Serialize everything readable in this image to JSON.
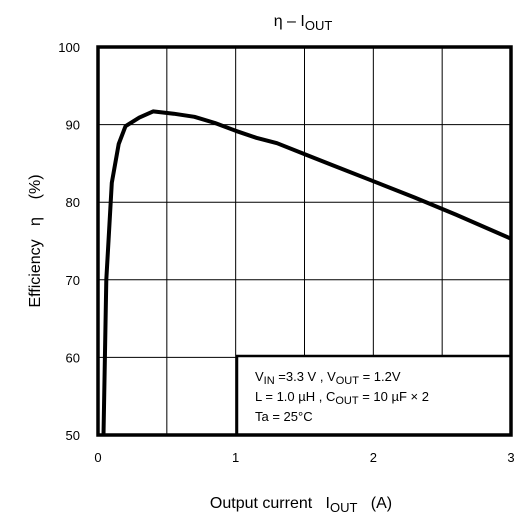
{
  "chart_data": {
    "type": "line",
    "title": {
      "main": "η – I",
      "sub": "OUT"
    },
    "xlabel": {
      "pre": "Output current   I",
      "sub": "OUT",
      "post": "   (A)"
    },
    "ylabel": "Efficiency   η    (%)",
    "xlim": [
      0,
      3
    ],
    "ylim": [
      50,
      100
    ],
    "x_ticks": [
      "0",
      "1",
      "2",
      "3"
    ],
    "y_ticks": [
      "50",
      "60",
      "70",
      "80",
      "90",
      "100"
    ],
    "grid": true,
    "series": [
      {
        "x": [
          0.04,
          0.06,
          0.1,
          0.15,
          0.2,
          0.3,
          0.4,
          0.55,
          0.7,
          0.85,
          1.0,
          1.15,
          1.3,
          1.5,
          1.7,
          2.0,
          2.3,
          2.6,
          3.0
        ],
        "y": [
          50.0,
          70.0,
          82.5,
          87.5,
          89.8,
          90.9,
          91.7,
          91.4,
          91.0,
          90.2,
          89.2,
          88.3,
          87.6,
          86.2,
          84.8,
          82.7,
          80.6,
          78.4,
          75.3
        ]
      }
    ],
    "annotation": {
      "line1": [
        {
          "t": "V",
          "s": false
        },
        {
          "t": "IN",
          "s": true
        },
        {
          "t": " =3.3 V , V",
          "s": false
        },
        {
          "t": "OUT",
          "s": true
        },
        {
          "t": " = 1.2V",
          "s": false
        }
      ],
      "line2": [
        {
          "t": "L = 1.0 µH , C",
          "s": false
        },
        {
          "t": "OUT",
          "s": true
        },
        {
          "t": " = 10 µF  × 2",
          "s": false
        }
      ],
      "line3": [
        {
          "t": "Ta = 25°C",
          "s": false
        }
      ]
    }
  }
}
